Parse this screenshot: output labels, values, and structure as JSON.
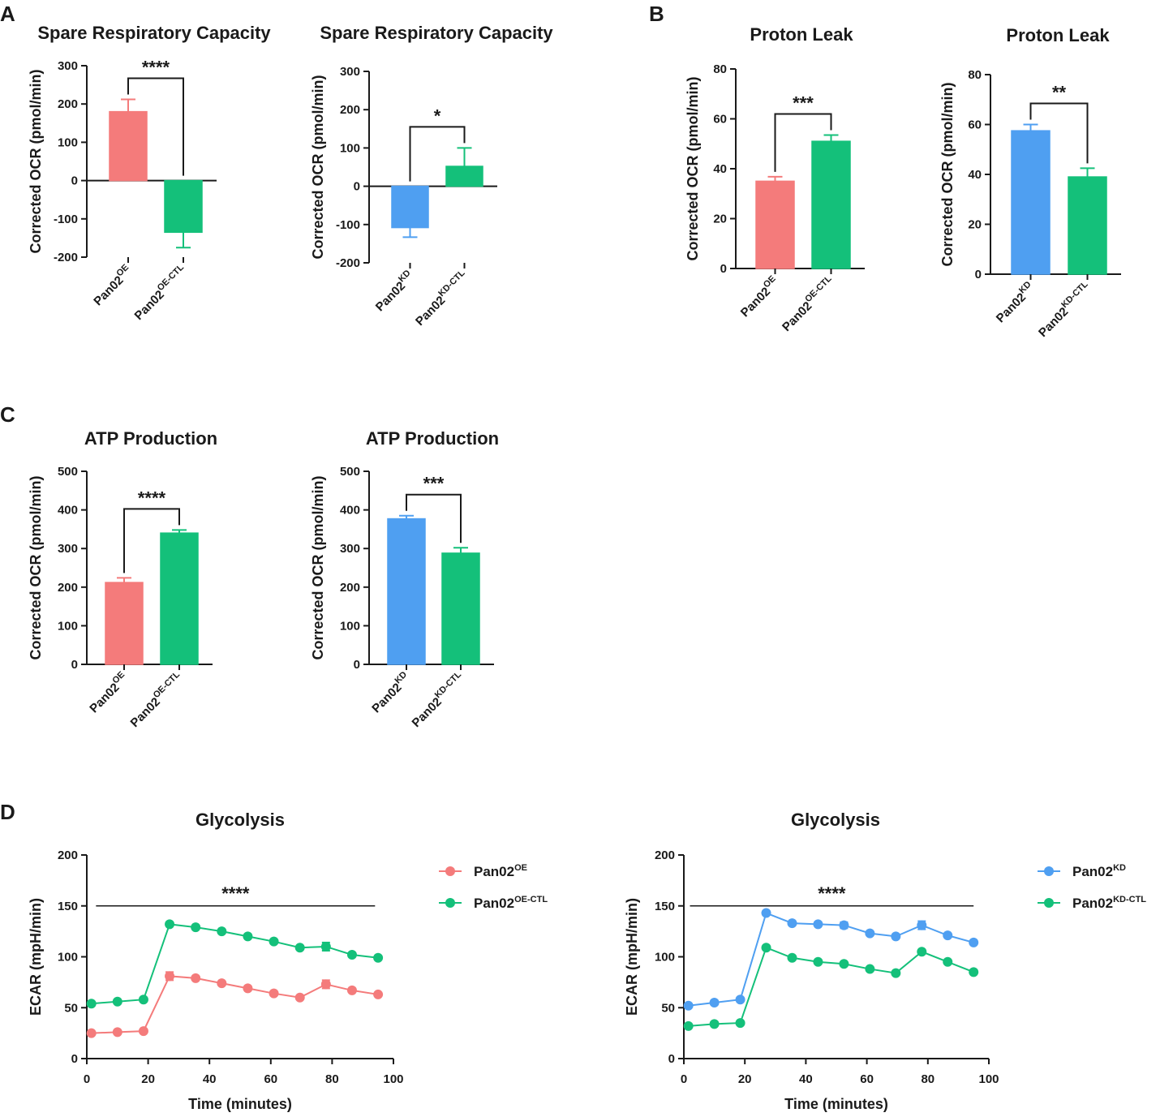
{
  "colors": {
    "red": "#f47b7b",
    "green": "#14c07a",
    "blue": "#4f9ff1",
    "axis": "#1a1a1a"
  },
  "panels": {
    "A": {
      "letter": "A"
    },
    "B": {
      "letter": "B"
    },
    "C": {
      "letter": "C"
    },
    "D": {
      "letter": "D"
    }
  },
  "chart_data": [
    {
      "id": "A1",
      "panel": "A",
      "type": "bar",
      "title": "Spare Respiratory Capacity",
      "ylabel": "Corrected OCR (pmol/min)",
      "ylim": [
        -200,
        300
      ],
      "yticks": [
        -200,
        -100,
        0,
        100,
        200,
        300
      ],
      "ytick_labels": [
        "-200",
        "-100",
        "0",
        "100",
        "200",
        "300"
      ],
      "categories": [
        {
          "base": "Pan02",
          "sup": "OE"
        },
        {
          "base": "Pan02",
          "sup": "OE-CTL"
        }
      ],
      "values": [
        180,
        -135
      ],
      "errors": [
        32,
        40
      ],
      "colors": [
        "red",
        "green"
      ],
      "significance": "****"
    },
    {
      "id": "A2",
      "panel": "A",
      "type": "bar",
      "title": "Spare Respiratory Capacity",
      "ylabel": "Corrected OCR (pmol/min)",
      "ylim": [
        -200,
        300
      ],
      "yticks": [
        -200,
        -100,
        0,
        100,
        200,
        300
      ],
      "ytick_labels": [
        "-200",
        "-100",
        "0",
        "100",
        "200",
        "300"
      ],
      "categories": [
        {
          "base": "Pan02",
          "sup": "KD"
        },
        {
          "base": "Pan02",
          "sup": "KD-CTL"
        }
      ],
      "values": [
        -108,
        52
      ],
      "errors": [
        25,
        48
      ],
      "colors": [
        "blue",
        "green"
      ],
      "significance": "*"
    },
    {
      "id": "B1",
      "panel": "B",
      "type": "bar",
      "title": "Proton Leak",
      "ylabel": "Corrected OCR (pmol/min)",
      "ylim": [
        0,
        80
      ],
      "yticks": [
        0,
        20,
        40,
        60,
        80
      ],
      "ytick_labels": [
        "0",
        "20",
        "40",
        "60",
        "80"
      ],
      "categories": [
        {
          "base": "Pan02",
          "sup": "OE"
        },
        {
          "base": "Pan02",
          "sup": "OE-CTL"
        }
      ],
      "values": [
        35,
        51
      ],
      "errors": [
        1.8,
        2.5
      ],
      "colors": [
        "red",
        "green"
      ],
      "significance": "***"
    },
    {
      "id": "B2",
      "panel": "B",
      "type": "bar",
      "title": "Proton Leak",
      "ylabel": "Corrected OCR (pmol/min)",
      "ylim": [
        0,
        80
      ],
      "yticks": [
        0,
        20,
        40,
        60,
        80
      ],
      "ytick_labels": [
        "0",
        "20",
        "40",
        "60",
        "80"
      ],
      "categories": [
        {
          "base": "Pan02",
          "sup": "KD"
        },
        {
          "base": "Pan02",
          "sup": "KD-CTL"
        }
      ],
      "values": [
        57.5,
        39
      ],
      "errors": [
        2.5,
        3.5
      ],
      "colors": [
        "blue",
        "green"
      ],
      "significance": "**"
    },
    {
      "id": "C1",
      "panel": "C",
      "type": "bar",
      "title": "ATP Production",
      "ylabel": "Corrected OCR (pmol/min)",
      "ylim": [
        0,
        500
      ],
      "yticks": [
        0,
        100,
        200,
        300,
        400,
        500
      ],
      "ytick_labels": [
        "0",
        "100",
        "200",
        "300",
        "400",
        "500"
      ],
      "categories": [
        {
          "base": "Pan02",
          "sup": "OE"
        },
        {
          "base": "Pan02",
          "sup": "OE-CTL"
        }
      ],
      "values": [
        212,
        340
      ],
      "errors": [
        12,
        8
      ],
      "colors": [
        "red",
        "green"
      ],
      "significance": "****"
    },
    {
      "id": "C2",
      "panel": "C",
      "type": "bar",
      "title": "ATP Production",
      "ylabel": "Corrected OCR (pmol/min)",
      "ylim": [
        0,
        500
      ],
      "yticks": [
        0,
        100,
        200,
        300,
        400,
        500
      ],
      "ytick_labels": [
        "0",
        "100",
        "200",
        "300",
        "400",
        "500"
      ],
      "categories": [
        {
          "base": "Pan02",
          "sup": "KD"
        },
        {
          "base": "Pan02",
          "sup": "KD-CTL"
        }
      ],
      "values": [
        377,
        288
      ],
      "errors": [
        8,
        14
      ],
      "colors": [
        "blue",
        "green"
      ],
      "significance": "***"
    },
    {
      "id": "D1",
      "panel": "D",
      "type": "line",
      "title": "Glycolysis",
      "ylabel": "ECAR (mpH/min)",
      "xlabel": "Time (minutes)",
      "xlim": [
        0,
        100
      ],
      "xticks": [
        0,
        20,
        40,
        60,
        80,
        100
      ],
      "xtick_labels": [
        "0",
        "20",
        "40",
        "60",
        "80",
        "100"
      ],
      "ylim": [
        0,
        200
      ],
      "yticks": [
        0,
        50,
        100,
        150,
        200
      ],
      "ytick_labels": [
        "0",
        "50",
        "100",
        "150",
        "200"
      ],
      "x": [
        1.5,
        10,
        18.5,
        27,
        35.5,
        44,
        52.5,
        61,
        69.5,
        78,
        86.5,
        95
      ],
      "series": [
        {
          "name_base": "Pan02",
          "name_sup": "OE",
          "color": "red",
          "values": [
            25,
            26,
            27,
            81,
            79,
            74,
            69,
            64,
            60,
            73,
            67,
            63
          ],
          "errors": [
            0,
            0,
            0,
            4,
            0,
            0,
            0,
            0,
            0,
            4,
            0,
            0
          ]
        },
        {
          "name_base": "Pan02",
          "name_sup": "OE-CTL",
          "color": "green",
          "values": [
            54,
            56,
            58,
            132,
            129,
            125,
            120,
            115,
            109,
            110,
            102,
            99
          ],
          "errors": [
            0,
            0,
            0,
            0,
            0,
            0,
            0,
            0,
            0,
            4,
            0,
            0
          ]
        }
      ],
      "significance": "****",
      "sig_range": [
        3,
        94
      ]
    },
    {
      "id": "D2",
      "panel": "D",
      "type": "line",
      "title": "Glycolysis",
      "ylabel": "ECAR (mpH/min)",
      "xlabel": "Time (minutes)",
      "xlim": [
        0,
        100
      ],
      "xticks": [
        0,
        20,
        40,
        60,
        80,
        100
      ],
      "xtick_labels": [
        "0",
        "20",
        "40",
        "60",
        "80",
        "100"
      ],
      "ylim": [
        0,
        200
      ],
      "yticks": [
        0,
        50,
        100,
        150,
        200
      ],
      "ytick_labels": [
        "0",
        "50",
        "100",
        "150",
        "200"
      ],
      "x": [
        1.5,
        10,
        18.5,
        27,
        35.5,
        44,
        52.5,
        61,
        69.5,
        78,
        86.5,
        95
      ],
      "series": [
        {
          "name_base": "Pan02",
          "name_sup": "KD",
          "color": "blue",
          "values": [
            52,
            55,
            58,
            143,
            133,
            132,
            131,
            123,
            120,
            131,
            121,
            114
          ],
          "errors": [
            0,
            0,
            0,
            0,
            0,
            0,
            3,
            0,
            0,
            4,
            0,
            0
          ]
        },
        {
          "name_base": "Pan02",
          "name_sup": "KD-CTL",
          "color": "green",
          "values": [
            32,
            34,
            35,
            109,
            99,
            95,
            93,
            88,
            84,
            105,
            95,
            85
          ],
          "errors": [
            0,
            0,
            0,
            0,
            0,
            0,
            0,
            0,
            0,
            0,
            0,
            0
          ]
        }
      ],
      "significance": "****",
      "sig_range": [
        2,
        95
      ]
    }
  ]
}
